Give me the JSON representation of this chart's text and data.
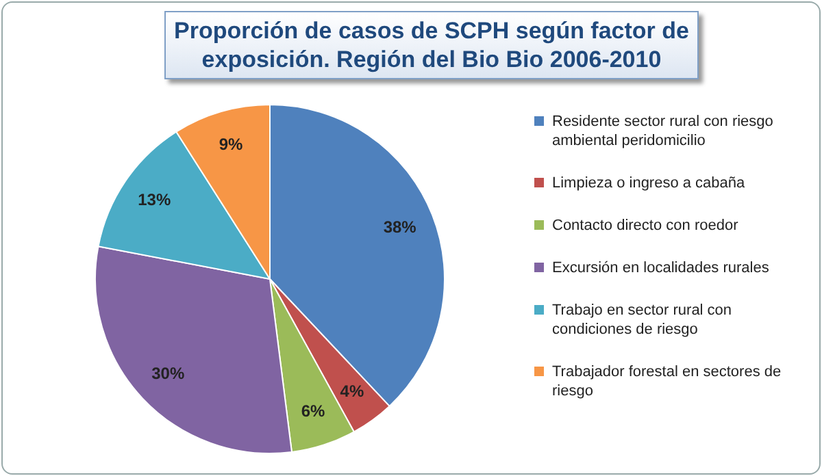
{
  "chart_data": {
    "type": "pie",
    "title": "Proporción de casos  de SCPH según factor de exposición. Región del Bio Bio 2006-2010",
    "categories": [
      "Residente sector rural con riesgo ambiental peridomicilio",
      "Limpieza o ingreso a cabaña",
      "Contacto directo con roedor",
      "Excursión en localidades rurales",
      "Trabajo en sector rural con condiciones de riesgo",
      "Trabajador forestal en sectores de riesgo"
    ],
    "values": [
      38,
      4,
      6,
      30,
      13,
      9
    ],
    "colors": [
      "#4f81bd",
      "#c0504d",
      "#9bbb59",
      "#8064a2",
      "#4bacc6",
      "#f79646"
    ],
    "value_labels": [
      "38%",
      "4%",
      "6%",
      "30%",
      "13%",
      "9%"
    ],
    "legend": "right"
  }
}
